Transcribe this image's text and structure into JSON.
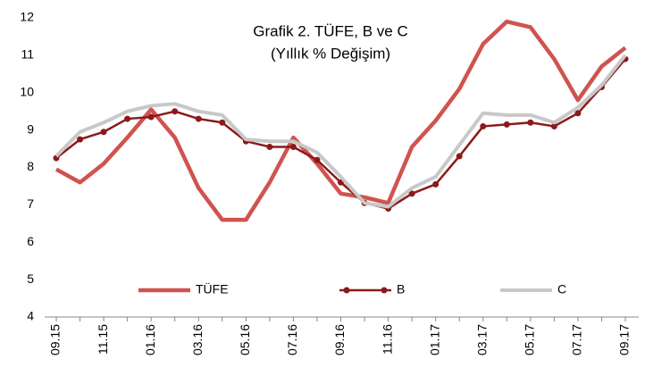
{
  "chart_data": {
    "type": "line",
    "title": "Grafik 2. TÜFE, B ve C",
    "subtitle": "(Yıllık % Değişim)",
    "categories": [
      "09.15",
      null,
      "11.15",
      null,
      "01.16",
      null,
      "03.16",
      null,
      "05.16",
      null,
      "07.16",
      null,
      "09.16",
      null,
      "11.16",
      null,
      "01.17",
      null,
      "03.17",
      null,
      "05.17",
      null,
      "07.17",
      null,
      "09.17"
    ],
    "series": [
      {
        "name": "TÜFE",
        "color": "#d0534f",
        "marker": false,
        "values": [
          7.95,
          7.6,
          8.1,
          8.8,
          9.55,
          8.8,
          7.45,
          6.6,
          6.6,
          7.6,
          8.8,
          8.1,
          7.3,
          7.2,
          7.05,
          8.55,
          9.25,
          10.1,
          11.3,
          11.9,
          11.75,
          10.9,
          9.8,
          10.7,
          11.2
        ]
      },
      {
        "name": "B",
        "color": "#8b1a1a",
        "marker": true,
        "values": [
          8.25,
          8.75,
          8.95,
          9.3,
          9.35,
          9.5,
          9.3,
          9.2,
          8.7,
          8.55,
          8.55,
          8.2,
          7.6,
          7.05,
          6.9,
          7.3,
          7.55,
          8.3,
          9.1,
          9.15,
          9.2,
          9.1,
          9.45,
          10.15,
          10.9
        ]
      },
      {
        "name": "C",
        "color": "#c8c8c8",
        "marker": false,
        "values": [
          8.3,
          8.95,
          9.2,
          9.5,
          9.65,
          9.7,
          9.5,
          9.4,
          8.75,
          8.7,
          8.7,
          8.4,
          7.75,
          7.05,
          6.95,
          7.45,
          7.75,
          8.6,
          9.45,
          9.4,
          9.4,
          9.2,
          9.6,
          10.2,
          11.0
        ]
      }
    ],
    "ylim": [
      4,
      12
    ],
    "yticks": [
      4,
      5,
      6,
      7,
      8,
      9,
      10,
      11,
      12
    ],
    "grid": false,
    "legend": "bottom"
  }
}
